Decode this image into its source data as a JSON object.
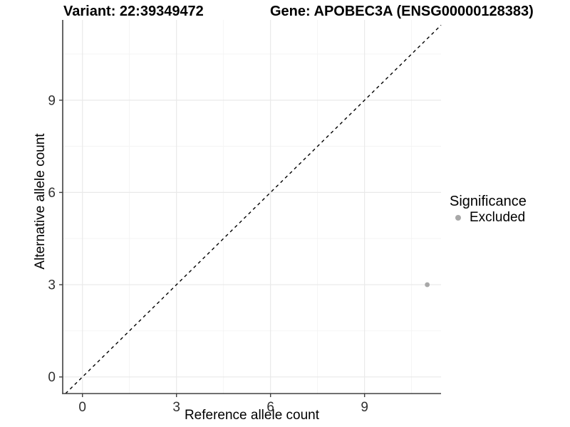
{
  "header": {
    "variant_title": "Variant: 22:39349472",
    "gene_title": "Gene: APOBEC3A (ENSG00000128383)"
  },
  "legend": {
    "title": "Significance",
    "items": [
      {
        "label": "Excluded",
        "marker": "circle-icon",
        "color": "#a8a8a8"
      }
    ]
  },
  "chart_data": {
    "type": "scatter",
    "title": "Variant: 22:39349472 | Gene: APOBEC3A (ENSG00000128383)",
    "xlabel": "Reference allele count",
    "ylabel": "Alternative allele count",
    "x_ticks": [
      0,
      3,
      6,
      9
    ],
    "y_ticks": [
      0,
      3,
      6,
      9
    ],
    "x_minor_ticks": [
      1.5,
      4.5,
      7.5,
      10.5
    ],
    "y_minor_ticks": [
      1.5,
      4.5,
      7.5,
      10.5
    ],
    "xlim": [
      -0.63,
      11.44
    ],
    "ylim": [
      -0.54,
      11.61
    ],
    "grid": "major+minor",
    "legend_position": "right",
    "series": [
      {
        "name": "Excluded",
        "color": "#a8a8a8",
        "marker": "circle",
        "points": [
          {
            "x": 11,
            "y": 3
          }
        ]
      }
    ],
    "annotations": [
      {
        "type": "identity-line",
        "equation": "y = x",
        "style": "dashed",
        "color": "#000000"
      }
    ]
  },
  "colors": {
    "background": "#ffffff",
    "grid_major": "#e9e9e9",
    "grid_minor": "#f3f3f3",
    "axis_line": "#404040",
    "tick_mark": "#404040",
    "tick_text": "#303030",
    "text": "#000000",
    "point": "#a8a8a8",
    "ref_line": "#000000"
  }
}
